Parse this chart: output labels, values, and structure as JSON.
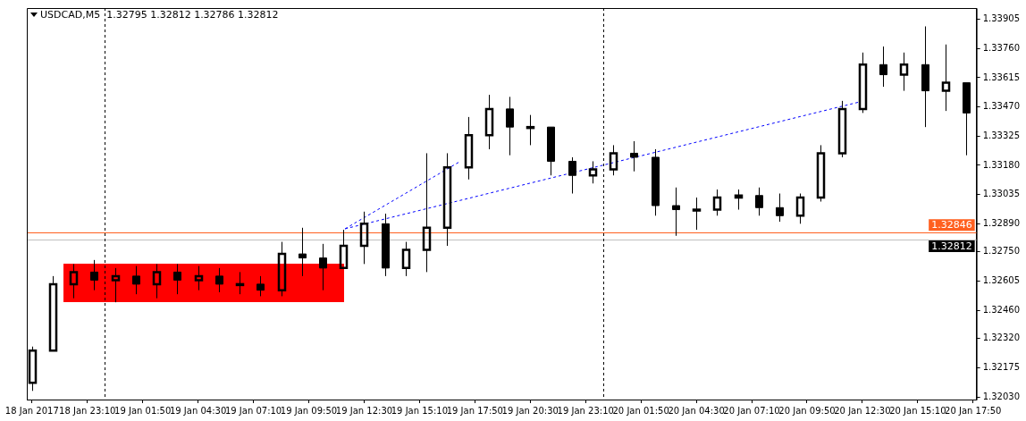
{
  "chart_data": {
    "type": "candlestick",
    "title": "USDCAD,M5  1.32795 1.32812 1.32786 1.32812",
    "color": "#000000",
    "x": [
      "2017-01-18T20:30",
      "2017-01-18T21:30",
      "2017-01-18T22:30",
      "2017-01-18T23:30",
      "2017-01-19T00:30",
      "2017-01-19T01:30",
      "2017-01-19T02:30",
      "2017-01-19T03:30",
      "2017-01-19T04:30",
      "2017-01-19T05:30",
      "2017-01-19T06:30",
      "2017-01-19T07:30",
      "2017-01-19T08:30",
      "2017-01-19T09:30",
      "2017-01-19T10:30",
      "2017-01-19T11:30",
      "2017-01-19T12:30",
      "2017-01-19T13:30",
      "2017-01-19T14:30",
      "2017-01-19T15:30",
      "2017-01-19T16:30",
      "2017-01-19T17:30",
      "2017-01-19T18:30",
      "2017-01-19T19:30",
      "2017-01-19T20:30",
      "2017-01-19T21:30",
      "2017-01-19T22:30",
      "2017-01-19T23:30",
      "2017-01-20T00:30",
      "2017-01-20T01:30",
      "2017-01-20T02:30",
      "2017-01-20T03:30",
      "2017-01-20T04:30",
      "2017-01-20T05:30",
      "2017-01-20T06:30",
      "2017-01-20T07:30",
      "2017-01-20T08:30",
      "2017-01-20T09:30",
      "2017-01-20T10:30",
      "2017-01-20T11:30",
      "2017-01-20T12:30",
      "2017-01-20T13:30",
      "2017-01-20T14:30",
      "2017-01-20T15:30",
      "2017-01-20T16:30",
      "2017-01-20T17:30"
    ],
    "ohlc": [
      [
        1.321,
        1.3228,
        1.3206,
        1.3226
      ],
      [
        1.3226,
        1.3263,
        1.3226,
        1.3259
      ],
      [
        1.3259,
        1.3269,
        1.3252,
        1.3265
      ],
      [
        1.3265,
        1.3271,
        1.3256,
        1.3261
      ],
      [
        1.3261,
        1.3267,
        1.325,
        1.3263
      ],
      [
        1.3263,
        1.3268,
        1.3254,
        1.3259
      ],
      [
        1.3259,
        1.3269,
        1.3252,
        1.3265
      ],
      [
        1.3265,
        1.3269,
        1.3254,
        1.3261
      ],
      [
        1.3261,
        1.3268,
        1.3256,
        1.3263
      ],
      [
        1.3263,
        1.3267,
        1.3255,
        1.3259
      ],
      [
        1.3259,
        1.3265,
        1.3254,
        1.3259
      ],
      [
        1.3259,
        1.3263,
        1.3253,
        1.3256
      ],
      [
        1.3256,
        1.328,
        1.3253,
        1.3274
      ],
      [
        1.3274,
        1.3287,
        1.3263,
        1.3272
      ],
      [
        1.3272,
        1.3279,
        1.3256,
        1.3267
      ],
      [
        1.3267,
        1.3286,
        1.3267,
        1.3278
      ],
      [
        1.3278,
        1.3295,
        1.3269,
        1.3289
      ],
      [
        1.3289,
        1.3294,
        1.3263,
        1.3267
      ],
      [
        1.3267,
        1.328,
        1.3263,
        1.3276
      ],
      [
        1.3276,
        1.3324,
        1.3265,
        1.3287
      ],
      [
        1.3287,
        1.3324,
        1.3278,
        1.3317
      ],
      [
        1.3317,
        1.3342,
        1.3311,
        1.3333
      ],
      [
        1.3333,
        1.3353,
        1.3326,
        1.3346
      ],
      [
        1.3346,
        1.3352,
        1.3323,
        1.3337
      ],
      [
        1.3337,
        1.3343,
        1.3328,
        1.3337
      ],
      [
        1.3337,
        1.3337,
        1.3313,
        1.332
      ],
      [
        1.332,
        1.3322,
        1.3304,
        1.3313
      ],
      [
        1.3313,
        1.332,
        1.3309,
        1.3316
      ],
      [
        1.3316,
        1.3328,
        1.3313,
        1.3324
      ],
      [
        1.3324,
        1.333,
        1.3315,
        1.3322
      ],
      [
        1.3322,
        1.3326,
        1.3293,
        1.3298
      ],
      [
        1.3298,
        1.3307,
        1.3283,
        1.3296
      ],
      [
        1.3296,
        1.3302,
        1.3286,
        1.3296
      ],
      [
        1.3296,
        1.3306,
        1.3293,
        1.3302
      ],
      [
        1.3302,
        1.3306,
        1.3296,
        1.3303
      ],
      [
        1.3303,
        1.3307,
        1.3293,
        1.3297
      ],
      [
        1.3297,
        1.3304,
        1.329,
        1.3293
      ],
      [
        1.3293,
        1.3304,
        1.3289,
        1.3302
      ],
      [
        1.3302,
        1.3328,
        1.33,
        1.3324
      ],
      [
        1.3324,
        1.335,
        1.3322,
        1.3346
      ],
      [
        1.3346,
        1.3374,
        1.3344,
        1.3368
      ],
      [
        1.3368,
        1.3377,
        1.3357,
        1.3363
      ],
      [
        1.3363,
        1.3374,
        1.3355,
        1.3368
      ],
      [
        1.3368,
        1.3387,
        1.3337,
        1.3355
      ],
      [
        1.3355,
        1.3378,
        1.3345,
        1.3359
      ],
      [
        1.3359,
        1.3359,
        1.3323,
        1.3344
      ]
    ],
    "series": [
      {
        "type": "line",
        "color": "#0000ff",
        "line_style": "dashed",
        "x": [
          "2017-01-19T11:35",
          "2017-01-19T17:05"
        ],
        "values": [
          1.32865,
          1.33197
        ]
      },
      {
        "type": "line",
        "color": "#0000ff",
        "line_style": "dashed",
        "x": [
          "2017-01-19T11:35",
          "2017-01-20T12:20"
        ],
        "values": [
          1.32865,
          1.33494
        ]
      }
    ],
    "xlim": [
      "2017-01-18T20:15",
      "2017-01-20T18:00"
    ],
    "xticks": [
      {
        "value": "2017-01-18T20:30",
        "label": "18 Jan 2017"
      },
      {
        "value": "2017-01-18T23:10",
        "label": "18 Jan 23:10"
      },
      {
        "value": "2017-01-19T01:50",
        "label": "19 Jan 01:50"
      },
      {
        "value": "2017-01-19T04:30",
        "label": "19 Jan 04:30"
      },
      {
        "value": "2017-01-19T07:10",
        "label": "19 Jan 07:10"
      },
      {
        "value": "2017-01-19T09:50",
        "label": "19 Jan 09:50"
      },
      {
        "value": "2017-01-19T12:30",
        "label": "19 Jan 12:30"
      },
      {
        "value": "2017-01-19T15:10",
        "label": "19 Jan 15:10"
      },
      {
        "value": "2017-01-19T17:50",
        "label": "19 Jan 17:50"
      },
      {
        "value": "2017-01-19T20:30",
        "label": "19 Jan 20:30"
      },
      {
        "value": "2017-01-19T23:10",
        "label": "19 Jan 23:10"
      },
      {
        "value": "2017-01-20T01:50",
        "label": "20 Jan 01:50"
      },
      {
        "value": "2017-01-20T04:30",
        "label": "20 Jan 04:30"
      },
      {
        "value": "2017-01-20T07:10",
        "label": "20 Jan 07:10"
      },
      {
        "value": "2017-01-20T09:50",
        "label": "20 Jan 09:50"
      },
      {
        "value": "2017-01-20T12:30",
        "label": "20 Jan 12:30"
      },
      {
        "value": "2017-01-20T15:10",
        "label": "20 Jan 15:10"
      },
      {
        "value": "2017-01-20T17:50",
        "label": "20 Jan 17:50"
      }
    ],
    "ylim": [
      1.32017,
      1.33961
    ],
    "yticks": [
      {
        "value": 1.3203,
        "label": "1.32030"
      },
      {
        "value": 1.32175,
        "label": "1.32175"
      },
      {
        "value": 1.3232,
        "label": "1.32320"
      },
      {
        "value": 1.3246,
        "label": "1.32460"
      },
      {
        "value": 1.32605,
        "label": "1.32605"
      },
      {
        "value": 1.3275,
        "label": "1.32750"
      },
      {
        "value": 1.3289,
        "label": "1.32890"
      },
      {
        "value": 1.33035,
        "label": "1.33035"
      },
      {
        "value": 1.3318,
        "label": "1.33180"
      },
      {
        "value": 1.33325,
        "label": "1.33325"
      },
      {
        "value": 1.3347,
        "label": "1.33470"
      },
      {
        "value": 1.33615,
        "label": "1.33615"
      },
      {
        "value": 1.3376,
        "label": "1.33760"
      },
      {
        "value": 1.33905,
        "label": "1.33905"
      }
    ],
    "ref_lines": [
      {
        "axis": "y",
        "value": 1.32846,
        "label": "1.32846",
        "color": "#ff6020"
      },
      {
        "axis": "y",
        "value": 1.32812,
        "label": "1.32812",
        "color": "#c0c0c0"
      },
      {
        "axis": "x",
        "value": "2017-01-19T00:00",
        "label": null,
        "color": "#000000",
        "line_style": "dashed"
      },
      {
        "axis": "x",
        "value": "2017-01-20T00:00",
        "label": null,
        "color": "#000000",
        "line_style": "dashed"
      }
    ],
    "grid": false,
    "legend": false,
    "marker": "none"
  }
}
